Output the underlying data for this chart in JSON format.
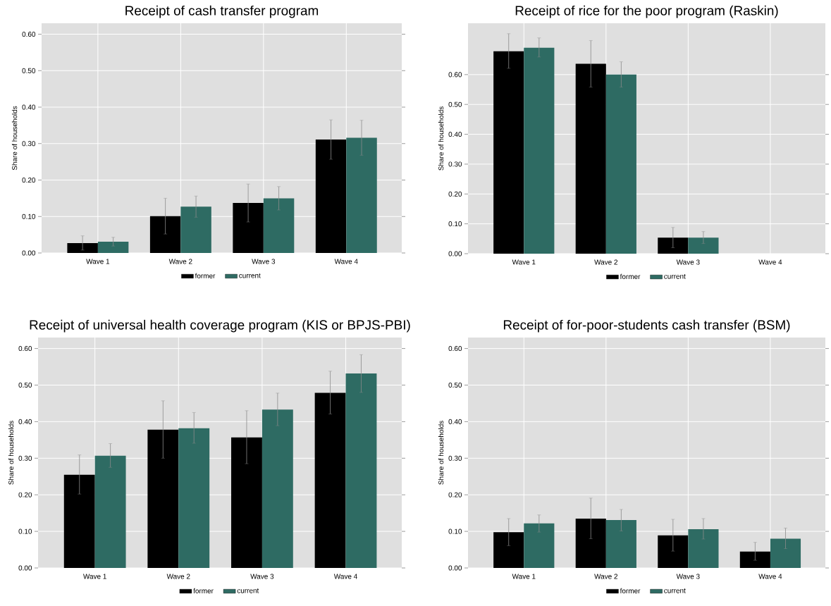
{
  "chart_data": [
    {
      "type": "bar",
      "title": "Receipt of cash transfer program",
      "ylabel": "Share of households",
      "categories": [
        "Wave 1",
        "Wave 2",
        "Wave 3",
        "Wave 4"
      ],
      "series": [
        {
          "name": "former",
          "color": "#000000",
          "values": [
            0.027,
            0.101,
            0.137,
            0.311
          ],
          "errors": [
            [
              0.008,
              0.047
            ],
            [
              0.052,
              0.15
            ],
            [
              0.085,
              0.189
            ],
            [
              0.257,
              0.365
            ]
          ]
        },
        {
          "name": "current",
          "color": "#2e6b63",
          "values": [
            0.031,
            0.127,
            0.15,
            0.316
          ],
          "errors": [
            [
              0.019,
              0.043
            ],
            [
              0.098,
              0.156
            ],
            [
              0.118,
              0.182
            ],
            [
              0.268,
              0.364
            ]
          ]
        }
      ],
      "ylim": [
        0,
        0.63
      ],
      "yticks": [
        {
          "value": 0,
          "label": "0.00"
        },
        {
          "value": 0.1,
          "label": "0.10"
        },
        {
          "value": 0.2,
          "label": "0.20"
        },
        {
          "value": 0.3,
          "label": "0.30"
        },
        {
          "value": 0.4,
          "label": "0.40"
        },
        {
          "value": 0.5,
          "label": "0.50"
        },
        {
          "value": 0.6,
          "label": "0.60"
        }
      ],
      "grid": true,
      "legend": "bottom"
    },
    {
      "type": "bar",
      "title": "Receipt of rice for the poor program (Raskin)",
      "ylabel": "Share of households",
      "categories": [
        "Wave 1",
        "Wave 2",
        "Wave 3",
        "Wave 4"
      ],
      "series": [
        {
          "name": "former",
          "color": "#000000",
          "values": [
            0.678,
            0.636,
            0.054,
            null
          ],
          "errors": [
            [
              0.621,
              0.737
            ],
            [
              0.558,
              0.714
            ],
            [
              0.02,
              0.088
            ],
            null
          ]
        },
        {
          "name": "current",
          "color": "#2e6b63",
          "values": [
            0.69,
            0.6,
            0.054,
            null
          ],
          "errors": [
            [
              0.659,
              0.723
            ],
            [
              0.558,
              0.643
            ],
            [
              0.034,
              0.074
            ],
            null
          ]
        }
      ],
      "ylim": [
        0,
        0.772
      ],
      "yticks": [
        {
          "value": 0,
          "label": "0.00"
        },
        {
          "value": 0.1,
          "label": "0.10"
        },
        {
          "value": 0.2,
          "label": "0.20"
        },
        {
          "value": 0.3,
          "label": "0.30"
        },
        {
          "value": 0.4,
          "label": "0.40"
        },
        {
          "value": 0.5,
          "label": "0.50"
        },
        {
          "value": 0.6,
          "label": "0.60"
        }
      ],
      "grid": true,
      "legend": "bottom"
    },
    {
      "type": "bar",
      "title": "Receipt of universal health coverage program (KIS or BPJS-PBI)",
      "ylabel": "Share of households",
      "categories": [
        "Wave 1",
        "Wave 2",
        "Wave 3",
        "Wave 4"
      ],
      "series": [
        {
          "name": "former",
          "color": "#000000",
          "values": [
            0.255,
            0.378,
            0.357,
            0.479
          ],
          "errors": [
            [
              0.202,
              0.309
            ],
            [
              0.3,
              0.457
            ],
            [
              0.285,
              0.43
            ],
            [
              0.421,
              0.538
            ]
          ]
        },
        {
          "name": "current",
          "color": "#2e6b63",
          "values": [
            0.307,
            0.382,
            0.433,
            0.532
          ],
          "errors": [
            [
              0.275,
              0.34
            ],
            [
              0.341,
              0.425
            ],
            [
              0.389,
              0.478
            ],
            [
              0.48,
              0.583
            ]
          ]
        }
      ],
      "ylim": [
        0,
        0.63
      ],
      "yticks": [
        {
          "value": 0,
          "label": "0.00"
        },
        {
          "value": 0.1,
          "label": "0.10"
        },
        {
          "value": 0.2,
          "label": "0.20"
        },
        {
          "value": 0.3,
          "label": "0.30"
        },
        {
          "value": 0.4,
          "label": "0.40"
        },
        {
          "value": 0.5,
          "label": "0.50"
        },
        {
          "value": 0.6,
          "label": "0.60"
        }
      ],
      "grid": true,
      "legend": "bottom"
    },
    {
      "type": "bar",
      "title": "Receipt of for-poor-students cash transfer (BSM)",
      "ylabel": "Share of households",
      "categories": [
        "Wave 1",
        "Wave 2",
        "Wave 3",
        "Wave 4"
      ],
      "series": [
        {
          "name": "former",
          "color": "#000000",
          "values": [
            0.098,
            0.135,
            0.089,
            0.045
          ],
          "errors": [
            [
              0.061,
              0.135
            ],
            [
              0.08,
              0.191
            ],
            [
              0.046,
              0.133
            ],
            [
              0.021,
              0.07
            ]
          ]
        },
        {
          "name": "current",
          "color": "#2e6b63",
          "values": [
            0.122,
            0.131,
            0.106,
            0.08
          ],
          "errors": [
            [
              0.098,
              0.145
            ],
            [
              0.101,
              0.16
            ],
            [
              0.079,
              0.135
            ],
            [
              0.053,
              0.109
            ]
          ]
        }
      ],
      "ylim": [
        0,
        0.63
      ],
      "yticks": [
        {
          "value": 0,
          "label": "0.00"
        },
        {
          "value": 0.1,
          "label": "0.10"
        },
        {
          "value": 0.2,
          "label": "0.20"
        },
        {
          "value": 0.3,
          "label": "0.30"
        },
        {
          "value": 0.4,
          "label": "0.40"
        },
        {
          "value": 0.5,
          "label": "0.50"
        },
        {
          "value": 0.6,
          "label": "0.60"
        }
      ],
      "grid": true,
      "legend": "bottom"
    }
  ]
}
